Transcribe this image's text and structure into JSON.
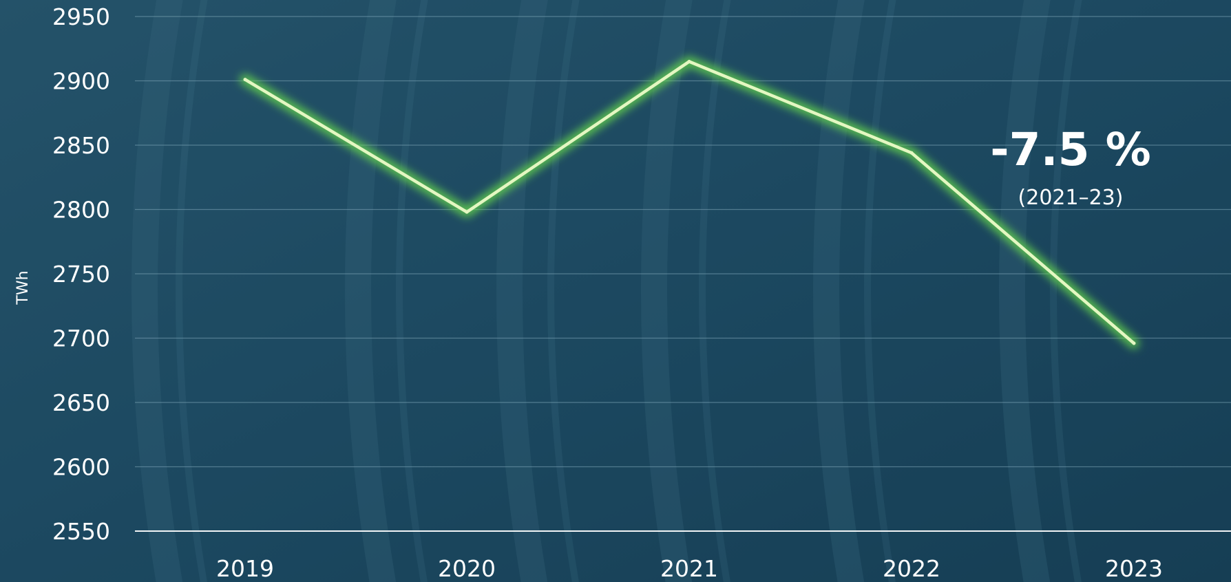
{
  "chart_data": {
    "type": "line",
    "title": "",
    "xlabel": "",
    "ylabel": "TWh",
    "categories": [
      "2019",
      "2020",
      "2021",
      "2022",
      "2023"
    ],
    "series": [
      {
        "values": [
          2901,
          2798,
          2915,
          2844,
          2696
        ]
      }
    ],
    "ylim": [
      2550,
      2950
    ],
    "yticks": [
      2550,
      2600,
      2650,
      2700,
      2750,
      2800,
      2850,
      2900,
      2950
    ],
    "ytick_labels": [
      "2550",
      "2600",
      "2650",
      "2700",
      "2750",
      "2800",
      "2850",
      "2900",
      "2950"
    ],
    "grid": true,
    "legend": "none",
    "annotation": {
      "main": "-7.5 %",
      "sub": "(2021–23)"
    },
    "colors": {
      "line": "#e4f7c2",
      "glow": "#6be04a",
      "grid": "#7fa6b8",
      "background": "#1d4a62",
      "text": "#ffffff"
    }
  }
}
